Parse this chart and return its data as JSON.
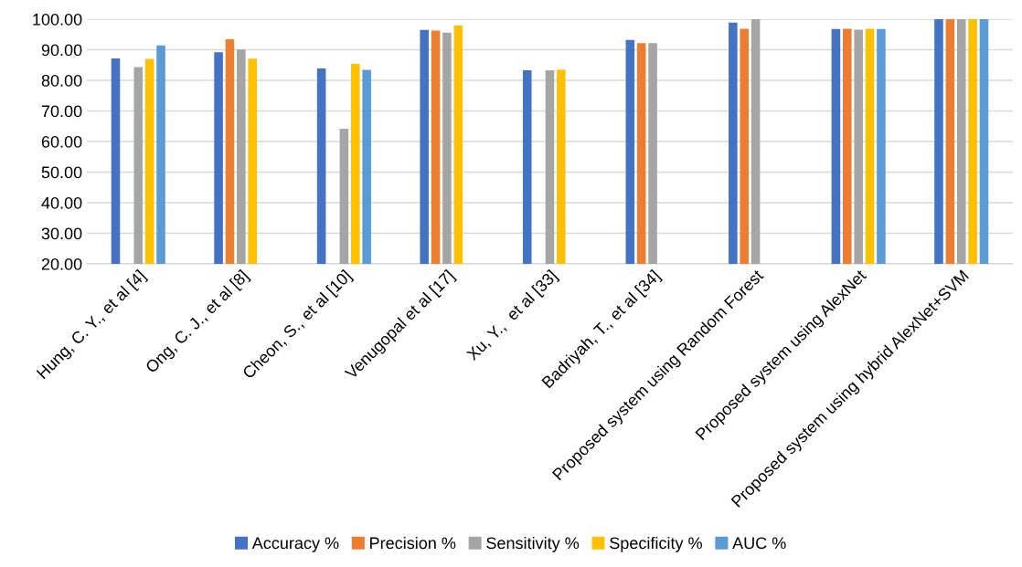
{
  "chart_data": {
    "type": "bar",
    "categories": [
      "Hung, C. Y., et al [4]",
      "Ong, C. J., et al [8]",
      "Cheon, S., et al [10]",
      "Venugopal et al [17]",
      "Xu, Y.,  et al [33]",
      "Badriyah, T., et al [34]",
      "Proposed system using Random Forest",
      "Proposed system using AlexNet",
      "Proposed system using hybrid AlexNet+SVM"
    ],
    "series": [
      {
        "name": "Accuracy %",
        "color": "#4472c4",
        "values": [
          87.2,
          89.2,
          83.9,
          96.5,
          83.3,
          93.2,
          98.9,
          96.8,
          100
        ]
      },
      {
        "name": "Precision %",
        "color": "#ed7d31",
        "values": [
          null,
          93.4,
          null,
          96.3,
          null,
          92.2,
          96.9,
          96.9,
          100
        ]
      },
      {
        "name": "Sensitivity %",
        "color": "#a5a5a5",
        "values": [
          84.3,
          90.1,
          64.2,
          95.6,
          83.3,
          92.2,
          100,
          96.6,
          100
        ]
      },
      {
        "name": "Specificity %",
        "color": "#ffc000",
        "values": [
          87.0,
          87.1,
          85.4,
          97.9,
          83.5,
          null,
          null,
          96.9,
          100
        ]
      },
      {
        "name": "AUC %",
        "color": "#5b9bd5",
        "values": [
          91.4,
          null,
          83.4,
          null,
          null,
          null,
          null,
          96.8,
          100
        ]
      }
    ],
    "ylim": [
      20,
      100
    ],
    "yticks": [
      {
        "value": 20,
        "label": "20.00"
      },
      {
        "value": 30,
        "label": "30.00"
      },
      {
        "value": 40,
        "label": "40.00"
      },
      {
        "value": 50,
        "label": "50.00"
      },
      {
        "value": 60,
        "label": "60.00"
      },
      {
        "value": 70,
        "label": "70.00"
      },
      {
        "value": 80,
        "label": "80.00"
      },
      {
        "value": 90,
        "label": "90.00"
      },
      {
        "value": 100,
        "label": "100.00"
      }
    ],
    "grid": "y",
    "legend": "bottom"
  }
}
